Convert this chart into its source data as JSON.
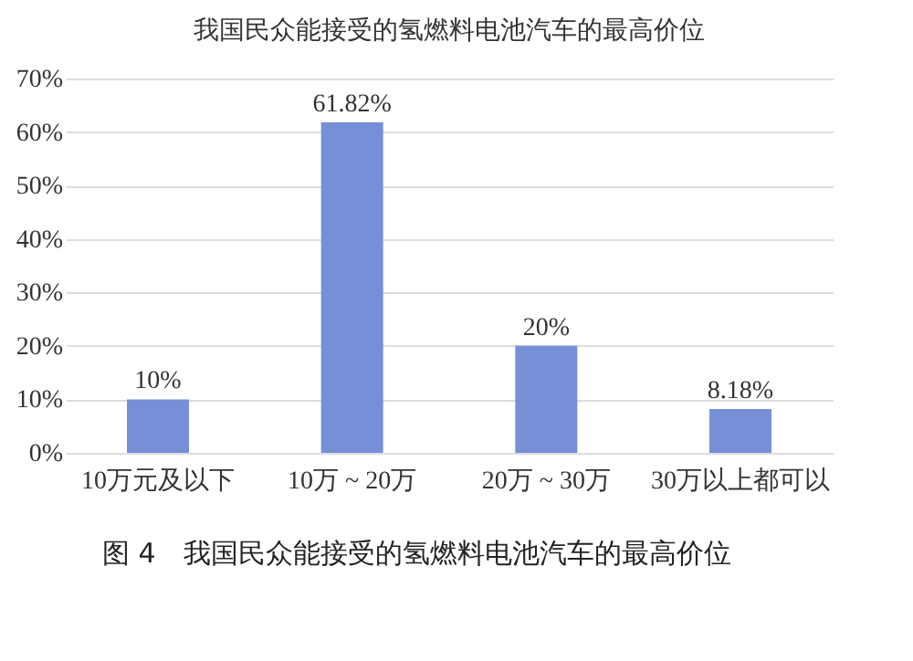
{
  "chart_data": {
    "type": "bar",
    "title": "我国民众能接受的氢燃料电池汽车的最高价位",
    "categories": [
      "10万元及以下",
      "10万 ~ 20万",
      "20万 ~ 30万",
      "30万以上都可以"
    ],
    "values": [
      10,
      61.82,
      20,
      8.18
    ],
    "color": "#7590d6",
    "value_labels": [
      "10%",
      "61.82%",
      "20%",
      "8.18%"
    ],
    "ylim": [
      0,
      70
    ],
    "yticks": [
      {
        "value": 0,
        "label": "0%"
      },
      {
        "value": 10,
        "label": "10%"
      },
      {
        "value": 20,
        "label": "20%"
      },
      {
        "value": 30,
        "label": "30%"
      },
      {
        "value": 40,
        "label": "40%"
      },
      {
        "value": 50,
        "label": "50%"
      },
      {
        "value": 60,
        "label": "60%"
      },
      {
        "value": 70,
        "label": "70%"
      }
    ],
    "grid": "y",
    "annotations": [
      "图 4　我国民众能接受的氢燃料电池汽车的最高价位"
    ]
  }
}
